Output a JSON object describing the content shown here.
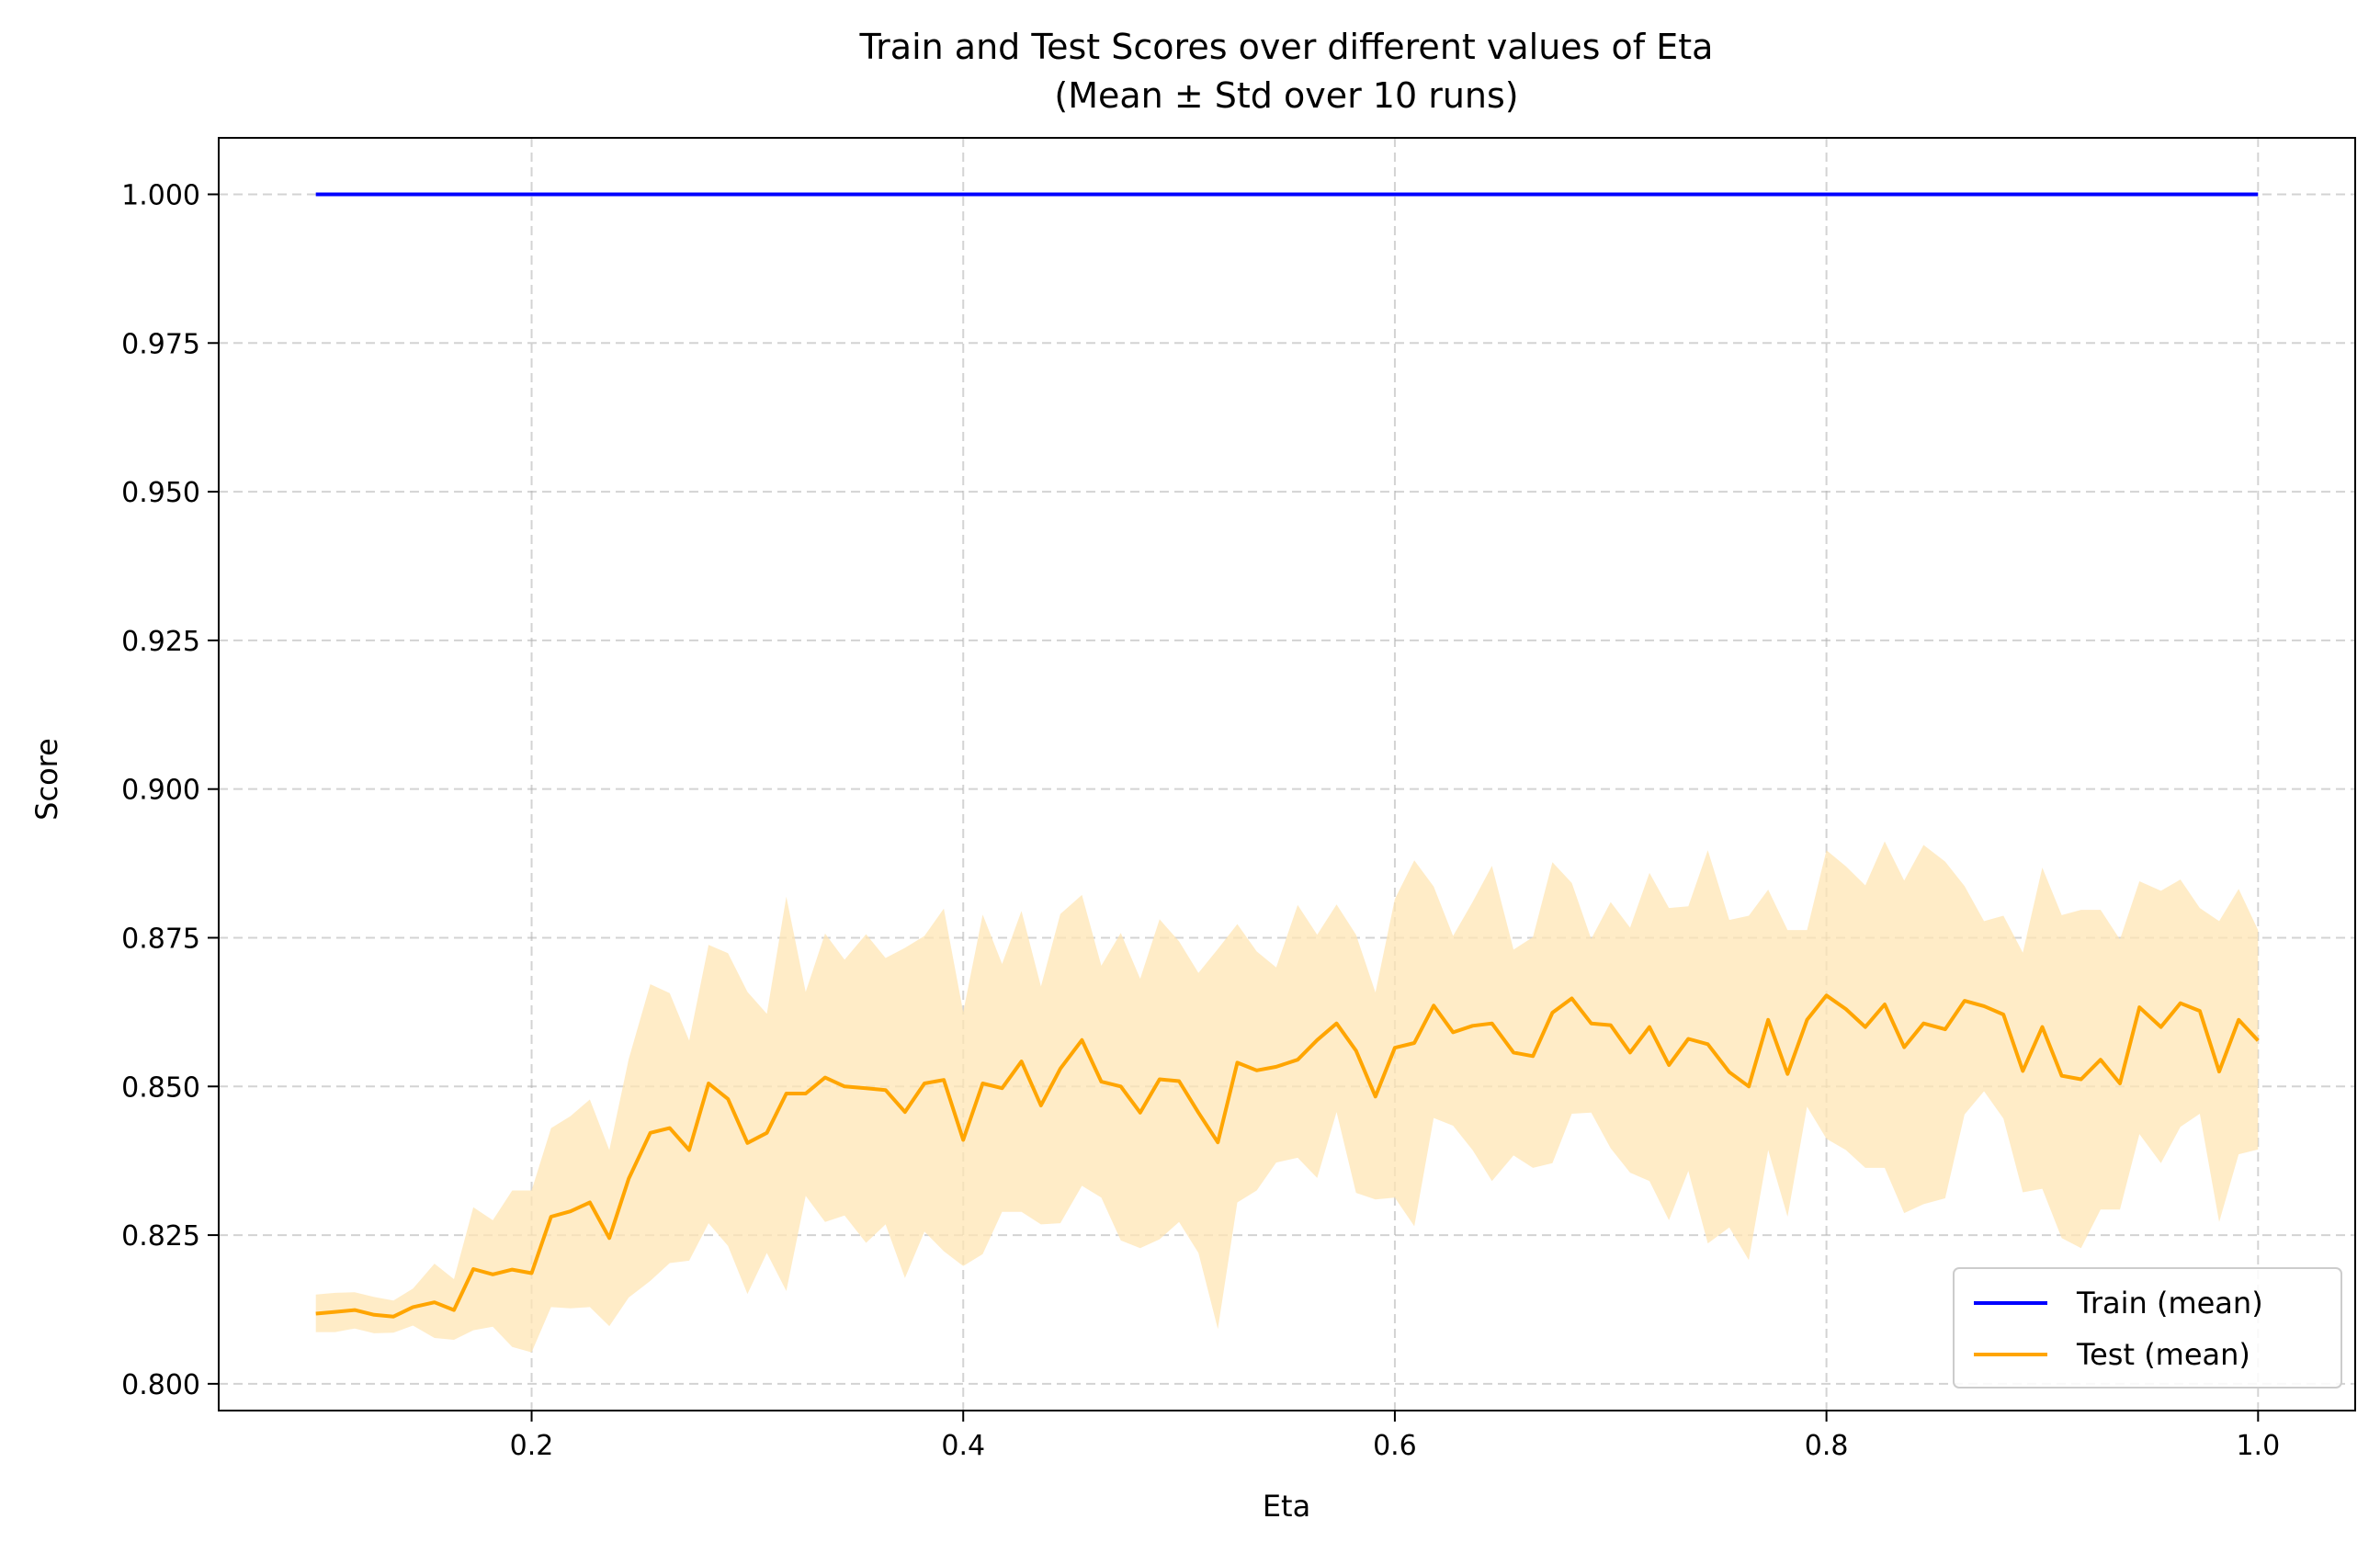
{
  "chart_data": {
    "type": "line",
    "title": "Train and Test Scores over different values of Eta",
    "subtitle": "(Mean ± Std over 10 runs)",
    "xlabel": "Eta",
    "ylabel": "Score",
    "xlim": [
      0.055,
      1.045
    ],
    "ylim": [
      0.7955,
      1.0095
    ],
    "x_ticks": [
      0.2,
      0.4,
      0.6,
      0.8,
      1.0
    ],
    "x_tick_labels": [
      "0.2",
      "0.4",
      "0.6",
      "0.8",
      "1.0"
    ],
    "y_ticks": [
      0.8,
      0.825,
      0.85,
      0.875,
      0.9,
      0.925,
      0.95,
      0.975,
      1.0
    ],
    "y_tick_labels": [
      "0.800",
      "0.825",
      "0.850",
      "0.875",
      "0.900",
      "0.925",
      "0.950",
      "0.975",
      "1.000"
    ],
    "grid": true,
    "legend_position": "bottom-right",
    "x": [
      0.1,
      0.109,
      0.118,
      0.127,
      0.136,
      0.145,
      0.155,
      0.164,
      0.173,
      0.182,
      0.191,
      0.2,
      0.209,
      0.218,
      0.227,
      0.236,
      0.245,
      0.255,
      0.264,
      0.273,
      0.282,
      0.291,
      0.3,
      0.309,
      0.318,
      0.327,
      0.336,
      0.345,
      0.355,
      0.364,
      0.373,
      0.382,
      0.391,
      0.4,
      0.409,
      0.418,
      0.427,
      0.436,
      0.445,
      0.455,
      0.464,
      0.473,
      0.482,
      0.491,
      0.5,
      0.509,
      0.518,
      0.527,
      0.536,
      0.545,
      0.555,
      0.564,
      0.573,
      0.582,
      0.591,
      0.6,
      0.609,
      0.618,
      0.627,
      0.636,
      0.645,
      0.655,
      0.664,
      0.673,
      0.682,
      0.691,
      0.7,
      0.709,
      0.718,
      0.727,
      0.736,
      0.745,
      0.755,
      0.764,
      0.773,
      0.782,
      0.791,
      0.8,
      0.809,
      0.818,
      0.827,
      0.836,
      0.845,
      0.855,
      0.864,
      0.873,
      0.882,
      0.891,
      0.9,
      0.909,
      0.918,
      0.927,
      0.936,
      0.945,
      0.955,
      0.964,
      0.973,
      0.982,
      0.991,
      1.0
    ],
    "series": [
      {
        "name": "Train (mean)",
        "color": "#0000ff",
        "values": [
          1,
          1,
          1,
          1,
          1,
          1,
          1,
          1,
          1,
          1,
          1,
          1,
          1,
          1,
          1,
          1,
          1,
          1,
          1,
          1,
          1,
          1,
          1,
          1,
          1,
          1,
          1,
          1,
          1,
          1,
          1,
          1,
          1,
          1,
          1,
          1,
          1,
          1,
          1,
          1,
          1,
          1,
          1,
          1,
          1,
          1,
          1,
          1,
          1,
          1,
          1,
          1,
          1,
          1,
          1,
          1,
          1,
          1,
          1,
          1,
          1,
          1,
          1,
          1,
          1,
          1,
          1,
          1,
          1,
          1,
          1,
          1,
          1,
          1,
          1,
          1,
          1,
          1,
          1,
          1,
          1,
          1,
          1,
          1,
          1,
          1,
          1,
          1,
          1,
          1,
          1,
          1,
          1,
          1,
          1,
          1,
          1,
          1,
          1,
          1
        ]
      },
      {
        "name": "Test (mean)",
        "color": "#ffa500",
        "band_color": "#ffe5b4",
        "values": [
          0.8118,
          0.8121,
          0.8124,
          0.8116,
          0.8113,
          0.8129,
          0.8137,
          0.8124,
          0.8193,
          0.8184,
          0.8192,
          0.8186,
          0.8281,
          0.829,
          0.8305,
          0.8245,
          0.8345,
          0.8422,
          0.843,
          0.8393,
          0.8505,
          0.8479,
          0.8405,
          0.8422,
          0.8488,
          0.8488,
          0.8515,
          0.85,
          0.8497,
          0.8494,
          0.8457,
          0.8505,
          0.8511,
          0.841,
          0.8505,
          0.8497,
          0.8542,
          0.8468,
          0.853,
          0.8578,
          0.8508,
          0.85,
          0.8456,
          0.8512,
          0.8509,
          0.8456,
          0.8406,
          0.854,
          0.8527,
          0.8533,
          0.8545,
          0.8578,
          0.8606,
          0.856,
          0.8483,
          0.8565,
          0.8573,
          0.8636,
          0.8591,
          0.8602,
          0.8606,
          0.8557,
          0.8551,
          0.8624,
          0.8648,
          0.8606,
          0.8603,
          0.8557,
          0.86,
          0.8536,
          0.858,
          0.8571,
          0.8524,
          0.85,
          0.8612,
          0.8521,
          0.8612,
          0.8653,
          0.863,
          0.86,
          0.8638,
          0.8566,
          0.8606,
          0.8596,
          0.8644,
          0.8635,
          0.8621,
          0.8526,
          0.86,
          0.8518,
          0.8512,
          0.8545,
          0.8505,
          0.8633,
          0.86,
          0.864,
          0.8627,
          0.8525,
          0.8612,
          0.8577
        ],
        "upper": [
          0.815,
          0.8153,
          0.8154,
          0.8146,
          0.814,
          0.816,
          0.8202,
          0.8176,
          0.8297,
          0.8275,
          0.8325,
          0.8325,
          0.843,
          0.845,
          0.8478,
          0.8393,
          0.8546,
          0.8672,
          0.8657,
          0.8577,
          0.8738,
          0.8724,
          0.8659,
          0.8622,
          0.8819,
          0.8659,
          0.8757,
          0.8713,
          0.8756,
          0.8716,
          0.8733,
          0.8753,
          0.8799,
          0.8625,
          0.8789,
          0.8706,
          0.8795,
          0.8668,
          0.879,
          0.8822,
          0.8703,
          0.8758,
          0.8681,
          0.8781,
          0.8744,
          0.8691,
          0.8731,
          0.8773,
          0.8727,
          0.87,
          0.8805,
          0.8755,
          0.8806,
          0.8755,
          0.8658,
          0.8815,
          0.888,
          0.8836,
          0.8753,
          0.881,
          0.8871,
          0.873,
          0.8751,
          0.8877,
          0.8842,
          0.8748,
          0.881,
          0.8767,
          0.8859,
          0.88,
          0.8803,
          0.8897,
          0.878,
          0.8787,
          0.8831,
          0.8763,
          0.8763,
          0.8897,
          0.887,
          0.8838,
          0.8912,
          0.8846,
          0.8906,
          0.8878,
          0.8837,
          0.8778,
          0.8787,
          0.8725,
          0.8868,
          0.8788,
          0.8797,
          0.8797,
          0.8747,
          0.8845,
          0.8829,
          0.8848,
          0.88,
          0.8778,
          0.8832,
          0.8763
        ],
        "lower": [
          0.8087,
          0.8087,
          0.8093,
          0.8085,
          0.8086,
          0.8098,
          0.8077,
          0.8074,
          0.809,
          0.8096,
          0.8062,
          0.8053,
          0.8129,
          0.8127,
          0.8129,
          0.8097,
          0.8145,
          0.8173,
          0.8203,
          0.8207,
          0.827,
          0.8232,
          0.8151,
          0.822,
          0.8156,
          0.8316,
          0.8272,
          0.8283,
          0.8237,
          0.8268,
          0.8178,
          0.8256,
          0.8223,
          0.8198,
          0.8218,
          0.8289,
          0.8289,
          0.8268,
          0.827,
          0.8333,
          0.8313,
          0.8241,
          0.8228,
          0.8243,
          0.8272,
          0.822,
          0.8092,
          0.8305,
          0.8325,
          0.8372,
          0.838,
          0.8346,
          0.8457,
          0.8321,
          0.831,
          0.8313,
          0.8265,
          0.8447,
          0.8434,
          0.8393,
          0.8341,
          0.8384,
          0.8363,
          0.8371,
          0.8454,
          0.8456,
          0.8396,
          0.8355,
          0.8341,
          0.8275,
          0.8358,
          0.8236,
          0.8263,
          0.8208,
          0.8393,
          0.8281,
          0.8466,
          0.8412,
          0.8393,
          0.8363,
          0.8363,
          0.8287,
          0.8302,
          0.8312,
          0.8453,
          0.8492,
          0.8446,
          0.8322,
          0.8328,
          0.8245,
          0.8228,
          0.8293,
          0.8293,
          0.842,
          0.8371,
          0.8432,
          0.8454,
          0.8272,
          0.8386,
          0.8394
        ]
      }
    ]
  }
}
